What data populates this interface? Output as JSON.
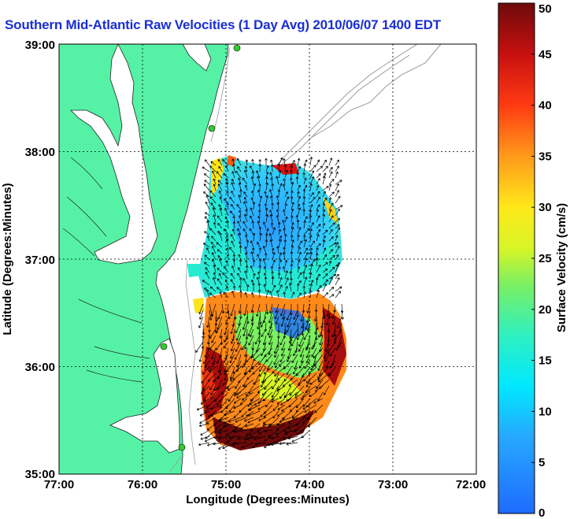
{
  "title": "Southern Mid-Atlantic Raw Velocities (1 Day Avg) 2010/06/07 1400 EDT",
  "axes": {
    "xlabel": "Longitude (Degrees:Minutes)",
    "ylabel": "Latitude (Degrees:Minutes)",
    "x_ticks": [
      "77:00",
      "76:00",
      "75:00",
      "74:00",
      "73:00",
      "72:00"
    ],
    "y_ticks": [
      "39:00",
      "38:00",
      "37:00",
      "36:00",
      "35:00"
    ]
  },
  "colorbar": {
    "label": "Surface Velocity (cm/s)",
    "ticks": [
      "0",
      "5",
      "10",
      "15",
      "20",
      "25",
      "30",
      "35",
      "40",
      "45",
      "50"
    ],
    "range": [
      0,
      50
    ]
  },
  "colors": {
    "land": "#55f2a6",
    "title": "#1a2fd6",
    "station": "#33cc33",
    "bathymetry": "#9a9a9a"
  }
}
